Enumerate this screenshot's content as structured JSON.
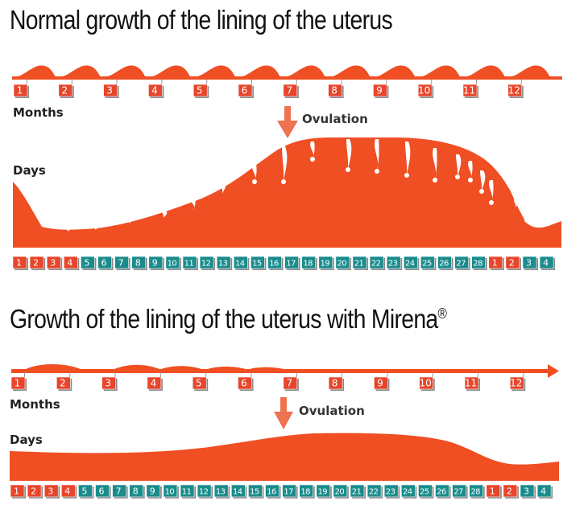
{
  "section1": {
    "title": "Normal growth of the lining of the uterus",
    "months_label": "Months",
    "days_label": "Days",
    "ovulation_label": "Ovulation"
  },
  "section2": {
    "title": "Growth of the lining of the uterus with Mirena",
    "title_mark": "®",
    "months_label": "Months",
    "days_label": "Days",
    "ovulation_label": "Ovulation"
  },
  "months": [
    "1",
    "2",
    "3",
    "4",
    "5",
    "6",
    "7",
    "8",
    "9",
    "10",
    "11",
    "12"
  ],
  "days": [
    "1",
    "2",
    "3",
    "4",
    "5",
    "6",
    "7",
    "8",
    "9",
    "10",
    "11",
    "12",
    "13",
    "14",
    "15",
    "16",
    "17",
    "18",
    "19",
    "20",
    "21",
    "22",
    "23",
    "24",
    "25",
    "26",
    "27",
    "28",
    "1",
    "2",
    "3",
    "4"
  ],
  "day_phases": [
    "menstrual",
    "menstrual",
    "menstrual",
    "menstrual",
    "cycle",
    "cycle",
    "cycle",
    "cycle",
    "cycle",
    "cycle",
    "cycle",
    "cycle",
    "cycle",
    "cycle",
    "cycle",
    "cycle",
    "cycle",
    "cycle",
    "cycle",
    "cycle",
    "cycle",
    "cycle",
    "cycle",
    "cycle",
    "cycle",
    "cycle",
    "cycle",
    "cycle",
    "menstrual",
    "menstrual",
    "cycle",
    "cycle"
  ],
  "colors": {
    "lining": "#f04e23",
    "menstrual_box": "#e8452a",
    "cycle_box": "#1a8c8c",
    "arrow": "#ee7350",
    "box_shadow": "#8a8a8a"
  }
}
